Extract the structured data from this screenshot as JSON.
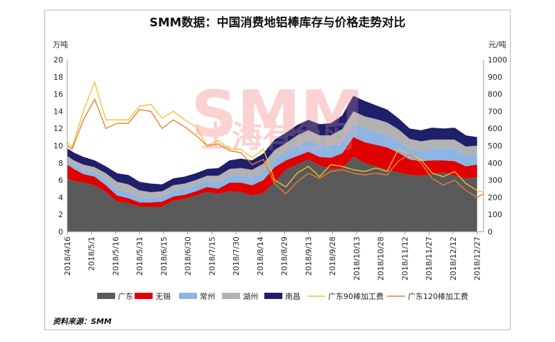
{
  "title": "SMM数据：中国消费地铝棒库存与价格走势对比",
  "source": "资料来源：SMM",
  "watermark": {
    "brand": "SMM",
    "cn": "上海有色网"
  },
  "chart_data": {
    "type": "area",
    "left_unit": "万吨",
    "right_unit": "元/吨",
    "ylim_left": [
      0,
      20
    ],
    "ylim_right": [
      0,
      1000
    ],
    "yticks_left": [
      0,
      2,
      4,
      6,
      8,
      10,
      12,
      14,
      16,
      18,
      20
    ],
    "yticks_right": [
      0,
      100,
      200,
      300,
      400,
      500,
      600,
      700,
      800,
      900,
      1000
    ],
    "x_labels": [
      "2018/4/16",
      "2018/5/1",
      "2018/5/16",
      "2018/5/31",
      "2018/6/15",
      "2018/6/30",
      "2018/7/15",
      "2018/7/30",
      "2018/8/14",
      "2018/8/29",
      "2018/9/13",
      "2018/9/28",
      "2018/10/13",
      "2018/10/28",
      "2018/11/12",
      "2018/11/27",
      "2018/12/12",
      "2018/12/27"
    ],
    "x_range": [
      "2018/4/16",
      "2018/12/31"
    ],
    "stack_dates": [
      "2018/4/16",
      "2018/4/20",
      "2018/4/26",
      "2018/5/3",
      "2018/5/10",
      "2018/5/17",
      "2018/5/24",
      "2018/5/31",
      "2018/6/7",
      "2018/6/14",
      "2018/6/21",
      "2018/6/28",
      "2018/7/5",
      "2018/7/12",
      "2018/7/19",
      "2018/7/26",
      "2018/8/2",
      "2018/8/9",
      "2018/8/16",
      "2018/8/23",
      "2018/8/30",
      "2018/9/6",
      "2018/9/13",
      "2018/9/20",
      "2018/9/27",
      "2018/10/4",
      "2018/10/11",
      "2018/10/18",
      "2018/10/25",
      "2018/11/1",
      "2018/11/8",
      "2018/11/15",
      "2018/11/22",
      "2018/11/29",
      "2018/12/6",
      "2018/12/13",
      "2018/12/20",
      "2018/12/27"
    ],
    "series": [
      {
        "name": "广东",
        "kind": "area",
        "axis": "left",
        "color": "#595959",
        "values": [
          6.2,
          5.9,
          5.7,
          5.4,
          4.6,
          3.5,
          3.3,
          2.9,
          2.9,
          2.9,
          3.6,
          3.8,
          4.2,
          4.6,
          4.4,
          4.7,
          4.6,
          4.2,
          4.5,
          5.8,
          7.2,
          7.8,
          8.4,
          7.7,
          7.3,
          7.4,
          8.7,
          8.0,
          7.6,
          7.2,
          6.9,
          6.6,
          6.5,
          6.7,
          6.9,
          6.5,
          6.2,
          6.3
        ]
      },
      {
        "name": "无锡",
        "kind": "area",
        "axis": "left",
        "color": "#e00000",
        "values": [
          1.6,
          1.4,
          1.0,
          1.0,
          0.8,
          0.7,
          0.6,
          0.5,
          0.5,
          0.6,
          0.5,
          0.5,
          0.5,
          0.6,
          0.6,
          1.0,
          1.1,
          1.2,
          1.5,
          1.7,
          1.1,
          1.0,
          0.9,
          1.0,
          1.3,
          1.7,
          2.3,
          2.4,
          2.5,
          2.6,
          2.3,
          1.8,
          1.7,
          1.6,
          1.4,
          1.7,
          1.4,
          1.5
        ]
      },
      {
        "name": "常州",
        "kind": "area",
        "axis": "left",
        "color": "#8db4e2",
        "values": [
          0.5,
          0.5,
          0.5,
          0.5,
          0.6,
          0.7,
          0.7,
          0.6,
          0.5,
          0.6,
          0.7,
          0.7,
          0.7,
          0.7,
          0.8,
          0.8,
          0.8,
          0.9,
          0.9,
          1.0,
          1.0,
          1.2,
          1.3,
          1.3,
          1.4,
          1.4,
          1.6,
          1.6,
          1.5,
          1.4,
          1.3,
          1.2,
          1.2,
          1.4,
          1.4,
          1.5,
          1.2,
          1.2
        ]
      },
      {
        "name": "湖州",
        "kind": "area",
        "axis": "left",
        "color": "#b2b2b2",
        "values": [
          0.5,
          0.5,
          0.6,
          0.6,
          0.8,
          0.9,
          0.9,
          0.8,
          0.7,
          0.6,
          0.6,
          0.6,
          0.6,
          0.6,
          0.7,
          0.8,
          0.9,
          0.9,
          1.0,
          1.0,
          1.0,
          1.2,
          1.2,
          1.2,
          1.2,
          1.4,
          1.4,
          1.4,
          1.5,
          1.5,
          1.4,
          1.2,
          1.1,
          1.0,
          1.0,
          1.0,
          1.1,
          1.0
        ]
      },
      {
        "name": "南昌",
        "kind": "area",
        "axis": "left",
        "color": "#1f1f6b",
        "values": [
          0.9,
          0.9,
          0.9,
          0.8,
          0.8,
          1.0,
          1.1,
          1.0,
          1.0,
          0.8,
          0.8,
          0.8,
          0.8,
          0.8,
          0.9,
          1.0,
          1.1,
          1.1,
          1.2,
          1.2,
          1.2,
          1.2,
          1.2,
          1.3,
          1.4,
          1.6,
          1.8,
          1.8,
          1.6,
          1.5,
          1.3,
          1.2,
          1.3,
          1.4,
          1.3,
          1.4,
          1.3,
          1.0
        ]
      },
      {
        "name": "广东90棒加工费",
        "kind": "line",
        "axis": "right",
        "color": "#f1c232",
        "dates": [
          "2018/4/16",
          "2018/4/19",
          "2018/4/26",
          "2018/5/3",
          "2018/5/10",
          "2018/5/17",
          "2018/5/24",
          "2018/5/31",
          "2018/6/7",
          "2018/6/14",
          "2018/6/21",
          "2018/6/28",
          "2018/7/5",
          "2018/7/12",
          "2018/7/19",
          "2018/7/26",
          "2018/8/2",
          "2018/8/9",
          "2018/8/16",
          "2018/8/23",
          "2018/8/30",
          "2018/9/6",
          "2018/9/13",
          "2018/9/20",
          "2018/9/27",
          "2018/10/4",
          "2018/10/11",
          "2018/10/18",
          "2018/10/25",
          "2018/11/1",
          "2018/11/8",
          "2018/11/15",
          "2018/11/22",
          "2018/11/29",
          "2018/12/6",
          "2018/12/13",
          "2018/12/20",
          "2018/12/27",
          "2018/12/31"
        ],
        "values": [
          520,
          490,
          700,
          870,
          650,
          650,
          650,
          730,
          740,
          660,
          700,
          650,
          610,
          500,
          530,
          480,
          480,
          430,
          480,
          300,
          260,
          340,
          380,
          320,
          390,
          380,
          360,
          350,
          370,
          350,
          480,
          450,
          420,
          340,
          320,
          350,
          280,
          240,
          230
        ]
      },
      {
        "name": "广东120棒加工费",
        "kind": "line",
        "axis": "right",
        "color": "#ed7d31",
        "dates": [
          "2018/4/16",
          "2018/4/19",
          "2018/4/26",
          "2018/5/3",
          "2018/5/10",
          "2018/5/17",
          "2018/5/24",
          "2018/5/31",
          "2018/6/7",
          "2018/6/14",
          "2018/6/21",
          "2018/6/28",
          "2018/7/5",
          "2018/7/12",
          "2018/7/19",
          "2018/7/26",
          "2018/8/2",
          "2018/8/9",
          "2018/8/16",
          "2018/8/23",
          "2018/8/30",
          "2018/9/6",
          "2018/9/13",
          "2018/9/20",
          "2018/9/27",
          "2018/10/4",
          "2018/10/11",
          "2018/10/18",
          "2018/10/25",
          "2018/11/1",
          "2018/11/8",
          "2018/11/15",
          "2018/11/22",
          "2018/11/29",
          "2018/12/6",
          "2018/12/13",
          "2018/12/20",
          "2018/12/27",
          "2018/12/31"
        ],
        "values": [
          500,
          480,
          650,
          770,
          600,
          630,
          630,
          710,
          700,
          600,
          650,
          610,
          560,
          500,
          510,
          470,
          460,
          390,
          420,
          280,
          220,
          290,
          340,
          310,
          350,
          360,
          340,
          330,
          340,
          330,
          410,
          450,
          400,
          310,
          270,
          300,
          240,
          200,
          220
        ]
      }
    ]
  }
}
